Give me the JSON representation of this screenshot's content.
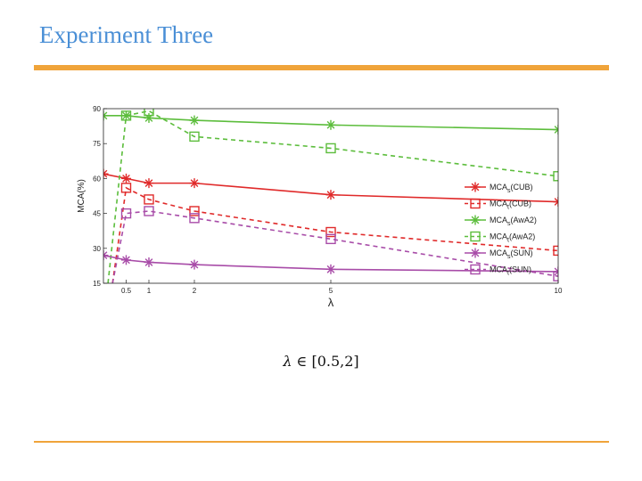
{
  "slide": {
    "title": "Experiment Three",
    "caption_symbol": "λ",
    "caption_rest": " ∈ [0.5,2]",
    "accent_color": "#f0a43a",
    "title_color": "#4a8fd6"
  },
  "chart_data": {
    "type": "line",
    "xlabel": "λ",
    "ylabel": "MCA(%)",
    "x_ticks": [
      0.5,
      1,
      2,
      5,
      10
    ],
    "y_ticks": [
      15,
      30,
      45,
      60,
      75,
      90
    ],
    "xlim": [
      0,
      10
    ],
    "ylim": [
      15,
      90
    ],
    "legend_position": "right",
    "series": [
      {
        "label_main": "MCA",
        "label_sub": "s",
        "label_tail": "(CUB)",
        "color": "#e02a2a",
        "dash": false,
        "marker": "star",
        "points": [
          [
            0,
            62
          ],
          [
            0.5,
            60
          ],
          [
            1,
            58
          ],
          [
            2,
            58
          ],
          [
            5,
            53
          ],
          [
            10,
            50
          ]
        ]
      },
      {
        "label_main": "MCA",
        "label_sub": "t",
        "label_tail": "(CUB)",
        "color": "#e02a2a",
        "dash": true,
        "marker": "square",
        "points": [
          [
            0.2,
            15
          ],
          [
            0.5,
            56
          ],
          [
            1,
            51
          ],
          [
            2,
            46
          ],
          [
            5,
            37
          ],
          [
            10,
            29
          ]
        ]
      },
      {
        "label_main": "MCA",
        "label_sub": "s",
        "label_tail": "(AwA2)",
        "color": "#5cbd3c",
        "dash": false,
        "marker": "star",
        "points": [
          [
            0,
            87
          ],
          [
            0.5,
            87
          ],
          [
            1,
            86
          ],
          [
            2,
            85
          ],
          [
            5,
            83
          ],
          [
            10,
            81
          ]
        ]
      },
      {
        "label_main": "MCA",
        "label_sub": "t",
        "label_tail": "(AwA2)",
        "color": "#5cbd3c",
        "dash": true,
        "marker": "square",
        "points": [
          [
            0.1,
            15
          ],
          [
            0.5,
            87
          ],
          [
            1,
            89
          ],
          [
            2,
            78
          ],
          [
            5,
            73
          ],
          [
            10,
            61
          ]
        ]
      },
      {
        "label_main": "MCA",
        "label_sub": "s",
        "label_tail": "(SUN)",
        "color": "#a84ca8",
        "dash": false,
        "marker": "star",
        "points": [
          [
            0,
            27
          ],
          [
            0.5,
            25
          ],
          [
            1,
            24
          ],
          [
            2,
            23
          ],
          [
            5,
            21
          ],
          [
            10,
            20
          ]
        ]
      },
      {
        "label_main": "MCA",
        "label_sub": "t",
        "label_tail": "(SUN)",
        "color": "#a84ca8",
        "dash": true,
        "marker": "square",
        "points": [
          [
            0.2,
            15
          ],
          [
            0.5,
            45
          ],
          [
            1,
            46
          ],
          [
            2,
            43
          ],
          [
            5,
            34
          ],
          [
            10,
            18
          ]
        ]
      }
    ]
  }
}
